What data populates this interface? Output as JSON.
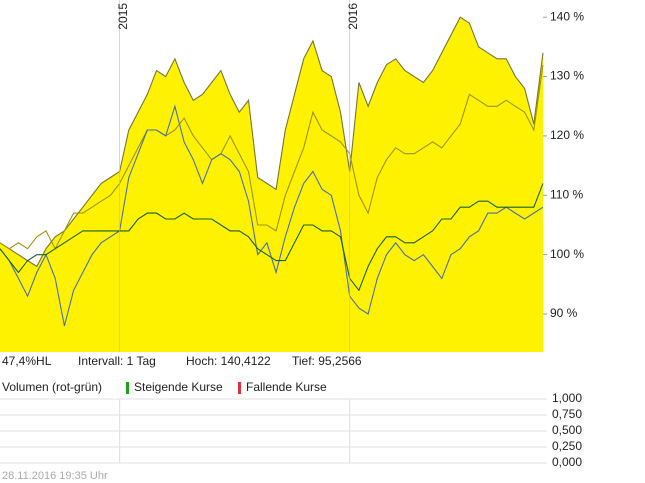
{
  "chart_data": [
    {
      "type": "line",
      "categories": [
        null,
        null,
        null,
        null,
        null,
        null,
        null,
        null,
        null,
        null,
        null,
        null,
        null,
        "2015",
        null,
        null,
        null,
        null,
        null,
        null,
        null,
        null,
        null,
        null,
        null,
        null,
        null,
        null,
        null,
        null,
        null,
        null,
        null,
        null,
        null,
        null,
        null,
        null,
        "2016",
        null,
        null,
        null,
        null,
        null,
        null,
        null,
        null,
        null,
        null,
        null,
        null,
        null,
        null,
        null,
        null,
        null,
        null,
        null,
        null,
        null
      ],
      "ylim": [
        83.6,
        142.9
      ],
      "yticks": [
        {
          "value": 90,
          "label": "90 %"
        },
        {
          "value": 100,
          "label": "100 %"
        },
        {
          "value": 110,
          "label": "110 %"
        },
        {
          "value": 120,
          "label": "120 %"
        },
        {
          "value": 130,
          "label": "130 %"
        },
        {
          "value": 140,
          "label": "140 %"
        }
      ],
      "series": [
        {
          "area": true,
          "color": "#7a7530",
          "fill": "#fff200",
          "values": [
            102,
            101,
            100,
            99,
            98,
            101,
            103,
            104,
            106,
            108,
            110,
            112,
            113,
            114,
            121,
            124,
            127,
            131,
            130,
            133,
            129,
            126,
            127,
            129,
            131,
            127,
            124,
            126,
            113,
            112,
            111,
            121,
            127,
            133,
            136,
            131,
            130,
            124,
            114,
            129,
            125,
            129,
            132,
            133,
            131,
            130,
            129,
            131,
            134,
            137,
            140,
            139,
            135,
            134,
            133,
            133,
            130,
            128,
            122,
            134
          ]
        },
        {
          "color": "#9c9510",
          "values": [
            102,
            101,
            102,
            101,
            103,
            104,
            101,
            104,
            107,
            107,
            108,
            109,
            110,
            112,
            115,
            118,
            121,
            121,
            120,
            121,
            123,
            120,
            118,
            116,
            117,
            120,
            117,
            114,
            105,
            105,
            104,
            110,
            114,
            118,
            124,
            121,
            120,
            119,
            117,
            110,
            107,
            113,
            116,
            118,
            117,
            117,
            118,
            119,
            118,
            120,
            122,
            127,
            126,
            125,
            125,
            126,
            125,
            124,
            121,
            132
          ]
        },
        {
          "color": "#4a6da8",
          "values": [
            101,
            99,
            96,
            93,
            97,
            100,
            96,
            88,
            94,
            97,
            100,
            102,
            103,
            104,
            113,
            117,
            121,
            121,
            120,
            125,
            119,
            116,
            112,
            116,
            117,
            116,
            114,
            109,
            100,
            102,
            97,
            103,
            108,
            112,
            114,
            111,
            110,
            104,
            93,
            91,
            90,
            96,
            100,
            102,
            100,
            99,
            100,
            98,
            96,
            100,
            101,
            103,
            104,
            107,
            107,
            108,
            107,
            106,
            107,
            108
          ]
        },
        {
          "color": "#1d5e24",
          "values": [
            101,
            99,
            97,
            99,
            100,
            100,
            101,
            102,
            103,
            104,
            104,
            104,
            104,
            104,
            104,
            106,
            107,
            107,
            106,
            106,
            107,
            106,
            106,
            106,
            105,
            104,
            104,
            103,
            101,
            100,
            99,
            99,
            102,
            105,
            105,
            104,
            104,
            103,
            96,
            94,
            98,
            101,
            103,
            103,
            102,
            102,
            103,
            104,
            106,
            106,
            108,
            108,
            109,
            109,
            108,
            108,
            108,
            108,
            108,
            112
          ]
        }
      ]
    },
    {
      "type": "bar",
      "title": "Volumen (rot-grün)",
      "ylim": [
        0,
        1
      ],
      "yticks": [
        {
          "value": 0,
          "label": "0,000"
        },
        {
          "value": 0.25,
          "label": "0,250"
        },
        {
          "value": 0.5,
          "label": "0,500"
        },
        {
          "value": 0.75,
          "label": "0,750"
        },
        {
          "value": 1,
          "label": "1,000"
        }
      ],
      "series": [
        {
          "name": "Steigende Kurse",
          "color": "#1aa31a"
        },
        {
          "name": "Fallende Kurse",
          "color": "#e0303a"
        }
      ]
    }
  ],
  "info": {
    "range": "47,4%HL",
    "interval": "Intervall: 1 Tag",
    "high": "Hoch: 140,4122",
    "low": "Tief: 95,2566"
  },
  "footer": "28.11.2016 19:35 Uhr"
}
